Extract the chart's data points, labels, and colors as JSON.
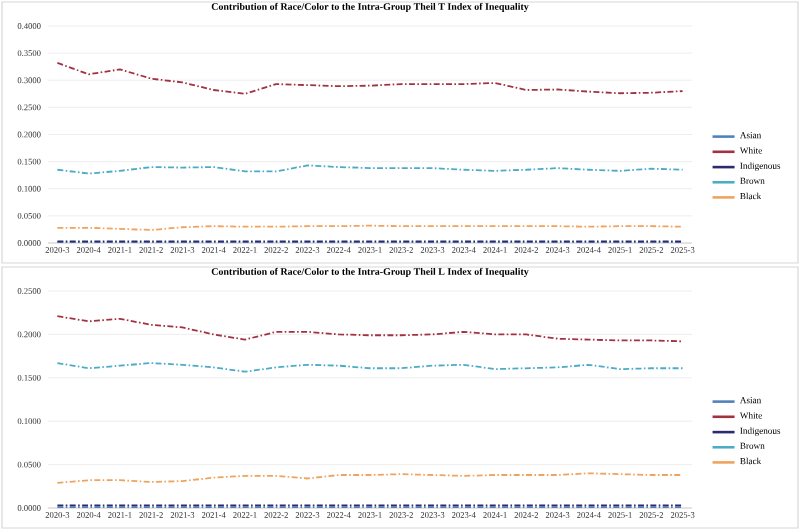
{
  "chart_data": [
    {
      "type": "line",
      "title": "Contribution of Race/Color to the Intra-Group Theil T Index of Inequality",
      "categories": [
        "2020-3",
        "2020-4",
        "2021-1",
        "2021-2",
        "2021-3",
        "2021-4",
        "2022-1",
        "2022-2",
        "2022-3",
        "2022-4",
        "2023-1",
        "2023-2",
        "2023-3",
        "2023-4",
        "2024-1",
        "2024-2",
        "2024-3",
        "2024-4",
        "2025-1",
        "2025-2",
        "2025-3"
      ],
      "series": [
        {
          "name": "Asian",
          "color": "#4f81bd",
          "values": [
            0.001,
            0.001,
            0.001,
            0.001,
            0.001,
            0.001,
            0.001,
            0.001,
            0.001,
            0.001,
            0.001,
            0.001,
            0.001,
            0.001,
            0.001,
            0.001,
            0.001,
            0.001,
            0.001,
            0.001,
            0.001
          ]
        },
        {
          "name": "White",
          "color": "#a33240",
          "values": [
            0.332,
            0.311,
            0.32,
            0.303,
            0.296,
            0.282,
            0.275,
            0.293,
            0.291,
            0.289,
            0.29,
            0.293,
            0.293,
            0.293,
            0.295,
            0.282,
            0.283,
            0.279,
            0.276,
            0.277,
            0.28
          ]
        },
        {
          "name": "Indigenous",
          "color": "#2e2a6e",
          "values": [
            0.003,
            0.003,
            0.003,
            0.003,
            0.003,
            0.003,
            0.003,
            0.003,
            0.003,
            0.003,
            0.003,
            0.003,
            0.003,
            0.003,
            0.003,
            0.003,
            0.003,
            0.003,
            0.003,
            0.003,
            0.003
          ]
        },
        {
          "name": "Brown",
          "color": "#4bacc6",
          "values": [
            0.135,
            0.128,
            0.133,
            0.14,
            0.139,
            0.14,
            0.132,
            0.132,
            0.143,
            0.14,
            0.138,
            0.138,
            0.138,
            0.135,
            0.133,
            0.135,
            0.138,
            0.135,
            0.133,
            0.137,
            0.135
          ]
        },
        {
          "name": "Black",
          "color": "#f0a35e",
          "values": [
            0.028,
            0.028,
            0.026,
            0.024,
            0.029,
            0.031,
            0.03,
            0.03,
            0.031,
            0.031,
            0.032,
            0.031,
            0.031,
            0.031,
            0.031,
            0.031,
            0.031,
            0.03,
            0.031,
            0.031,
            0.03
          ]
        }
      ],
      "ylim": [
        0,
        0.4
      ],
      "yticks": [
        {
          "value": 0,
          "label": "0.0000"
        },
        {
          "value": 0.05,
          "label": "0.0500"
        },
        {
          "value": 0.1,
          "label": "0.1000"
        },
        {
          "value": 0.15,
          "label": "0.1500"
        },
        {
          "value": 0.2,
          "label": "0.2000"
        },
        {
          "value": 0.25,
          "label": "0.2500"
        },
        {
          "value": 0.3,
          "label": "0.3000"
        },
        {
          "value": 0.35,
          "label": "0.3500"
        },
        {
          "value": 0.4,
          "label": "0.4000"
        }
      ],
      "grid": "y",
      "legend": "right",
      "line_style": "dashed"
    },
    {
      "type": "line",
      "title": "Contribution of Race/Color to the Intra-Group Theil L Index of Inequality",
      "categories": [
        "2020-3",
        "2020-4",
        "2021-1",
        "2021-2",
        "2021-3",
        "2021-4",
        "2022-1",
        "2022-2",
        "2022-3",
        "2022-4",
        "2023-1",
        "2023-2",
        "2023-3",
        "2023-4",
        "2024-1",
        "2024-2",
        "2024-3",
        "2024-4",
        "2025-1",
        "2025-2",
        "2025-3"
      ],
      "series": [
        {
          "name": "Asian",
          "color": "#4f81bd",
          "values": [
            0.001,
            0.001,
            0.001,
            0.001,
            0.001,
            0.001,
            0.001,
            0.001,
            0.001,
            0.001,
            0.001,
            0.001,
            0.001,
            0.001,
            0.001,
            0.001,
            0.001,
            0.001,
            0.001,
            0.001,
            0.001
          ]
        },
        {
          "name": "White",
          "color": "#a33240",
          "values": [
            0.221,
            0.215,
            0.218,
            0.211,
            0.208,
            0.2,
            0.194,
            0.203,
            0.203,
            0.2,
            0.199,
            0.199,
            0.2,
            0.203,
            0.2,
            0.2,
            0.195,
            0.194,
            0.193,
            0.193,
            0.192
          ]
        },
        {
          "name": "Indigenous",
          "color": "#2e2a6e",
          "values": [
            0.003,
            0.003,
            0.003,
            0.003,
            0.003,
            0.003,
            0.003,
            0.003,
            0.003,
            0.003,
            0.003,
            0.003,
            0.003,
            0.003,
            0.003,
            0.003,
            0.003,
            0.003,
            0.003,
            0.003,
            0.003
          ]
        },
        {
          "name": "Brown",
          "color": "#4bacc6",
          "values": [
            0.167,
            0.161,
            0.164,
            0.167,
            0.165,
            0.162,
            0.157,
            0.162,
            0.165,
            0.164,
            0.161,
            0.161,
            0.164,
            0.165,
            0.16,
            0.161,
            0.162,
            0.165,
            0.16,
            0.161,
            0.161
          ]
        },
        {
          "name": "Black",
          "color": "#f0a35e",
          "values": [
            0.029,
            0.032,
            0.032,
            0.03,
            0.031,
            0.035,
            0.037,
            0.037,
            0.034,
            0.038,
            0.038,
            0.039,
            0.038,
            0.037,
            0.038,
            0.038,
            0.038,
            0.04,
            0.039,
            0.038,
            0.038
          ]
        }
      ],
      "ylim": [
        0,
        0.25
      ],
      "yticks": [
        {
          "value": 0,
          "label": "0.0000"
        },
        {
          "value": 0.05,
          "label": "0.0500"
        },
        {
          "value": 0.1,
          "label": "0.1000"
        },
        {
          "value": 0.15,
          "label": "0.1500"
        },
        {
          "value": 0.2,
          "label": "0.2000"
        },
        {
          "value": 0.25,
          "label": "0.2500"
        }
      ],
      "grid": "y",
      "legend": "right",
      "line_style": "dashed"
    }
  ]
}
